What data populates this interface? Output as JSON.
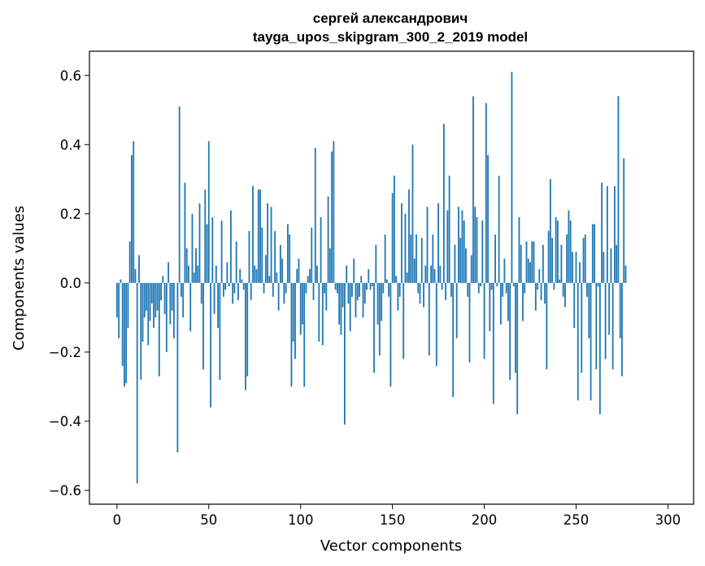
{
  "chart_data": {
    "type": "bar",
    "title": [
      "сергей александрович",
      "tayga_upos_skipgram_300_2_2019 model"
    ],
    "xlabel": "Vector components",
    "ylabel": "Components values",
    "xlim": [
      -15,
      314
    ],
    "ylim": [
      -0.64,
      0.67
    ],
    "xticks": [
      0,
      50,
      100,
      150,
      200,
      250,
      300
    ],
    "yticks": [
      -0.6,
      -0.4,
      -0.2,
      0.0,
      0.2,
      0.4,
      0.6
    ],
    "ytick_labels": [
      "−0.6",
      "−0.4",
      "−0.2",
      "0.0",
      "0.2",
      "0.4",
      "0.6"
    ],
    "bar_color": "#1f77b4",
    "values": [
      -0.1,
      -0.16,
      0.01,
      -0.24,
      -0.3,
      -0.29,
      -0.13,
      0.12,
      0.37,
      0.41,
      0.04,
      -0.58,
      0.08,
      -0.28,
      -0.17,
      -0.1,
      -0.08,
      -0.18,
      -0.11,
      -0.06,
      -0.13,
      -0.1,
      -0.08,
      -0.27,
      -0.05,
      0.02,
      -0.09,
      -0.2,
      0.06,
      -0.12,
      -0.08,
      -0.16,
      0.0,
      -0.49,
      0.51,
      -0.04,
      -0.1,
      0.29,
      0.1,
      0.05,
      -0.14,
      0.2,
      0.03,
      0.1,
      0.05,
      0.23,
      -0.06,
      -0.25,
      0.27,
      0.17,
      0.41,
      -0.36,
      0.19,
      -0.09,
      0.05,
      -0.13,
      -0.28,
      0.18,
      -0.04,
      -0.02,
      0.06,
      -0.01,
      0.21,
      -0.06,
      -0.03,
      0.12,
      -0.05,
      0.04,
      0.01,
      -0.02,
      -0.31,
      -0.27,
      0.15,
      -0.05,
      0.28,
      0.05,
      0.04,
      0.27,
      0.27,
      0.16,
      -0.03,
      0.08,
      0.23,
      0.02,
      0.22,
      -0.04,
      0.15,
      0.03,
      -0.08,
      0.11,
      0.07,
      -0.06,
      -0.03,
      0.17,
      0.14,
      -0.3,
      -0.17,
      -0.22,
      0.04,
      0.07,
      -0.15,
      -0.12,
      -0.3,
      -0.03,
      0.02,
      0.04,
      0.16,
      -0.05,
      0.39,
      0.05,
      -0.17,
      0.19,
      -0.18,
      -0.03,
      -0.08,
      0.25,
      0.1,
      0.38,
      0.41,
      -0.02,
      -0.03,
      -0.12,
      -0.15,
      -0.07,
      -0.41,
      0.05,
      -0.06,
      -0.14,
      -0.04,
      0.07,
      -0.1,
      -0.05,
      -0.04,
      0.02,
      -0.1,
      -0.06,
      -0.02,
      0.04,
      -0.02,
      -0.01,
      -0.26,
      0.11,
      -0.12,
      -0.21,
      -0.11,
      -0.03,
      0.14,
      0.01,
      -0.04,
      -0.3,
      0.26,
      0.31,
      0.02,
      -0.08,
      -0.04,
      0.23,
      -0.22,
      0.2,
      0.03,
      0.27,
      0.14,
      0.4,
      0.07,
      0.14,
      -0.03,
      -0.06,
      0.13,
      -0.07,
      0.05,
      0.22,
      -0.21,
      0.05,
      0.14,
      0.04,
      -0.24,
      0.23,
      0.05,
      -0.02,
      0.46,
      -0.05,
      0.21,
      0.31,
      -0.04,
      -0.33,
      0.11,
      -0.16,
      0.22,
      0.13,
      0.21,
      0.18,
      0.1,
      -0.04,
      -0.23,
      0.08,
      0.54,
      0.22,
      0.19,
      -0.03,
      -0.01,
      0.18,
      -0.22,
      0.52,
      0.37,
      -0.14,
      -0.02,
      -0.35,
      0.14,
      -0.01,
      0.31,
      -0.12,
      -0.04,
      0.07,
      -0.03,
      -0.11,
      -0.28,
      0.61,
      -0.01,
      -0.26,
      -0.38,
      0.19,
      0.11,
      -0.11,
      -0.03,
      0.12,
      0.07,
      0.06,
      0.12,
      0.12,
      -0.08,
      -0.02,
      0.04,
      -0.05,
      0.11,
      -0.06,
      -0.25,
      0.15,
      0.3,
      0.13,
      -0.02,
      0.19,
      0.18,
      0.01,
      0.11,
      -0.04,
      -0.07,
      0.14,
      0.21,
      0.18,
      0.09,
      -0.13,
      0.09,
      -0.34,
      0.06,
      -0.26,
      0.13,
      0.14,
      -0.04,
      -0.16,
      -0.34,
      0.17,
      0.17,
      -0.25,
      -0.01,
      -0.38,
      0.29,
      0.09,
      -0.22,
      0.28,
      -0.15,
      0.1,
      -0.25,
      0.28,
      0.11,
      0.54,
      -0.16,
      -0.27,
      0.36,
      0.05
    ]
  }
}
